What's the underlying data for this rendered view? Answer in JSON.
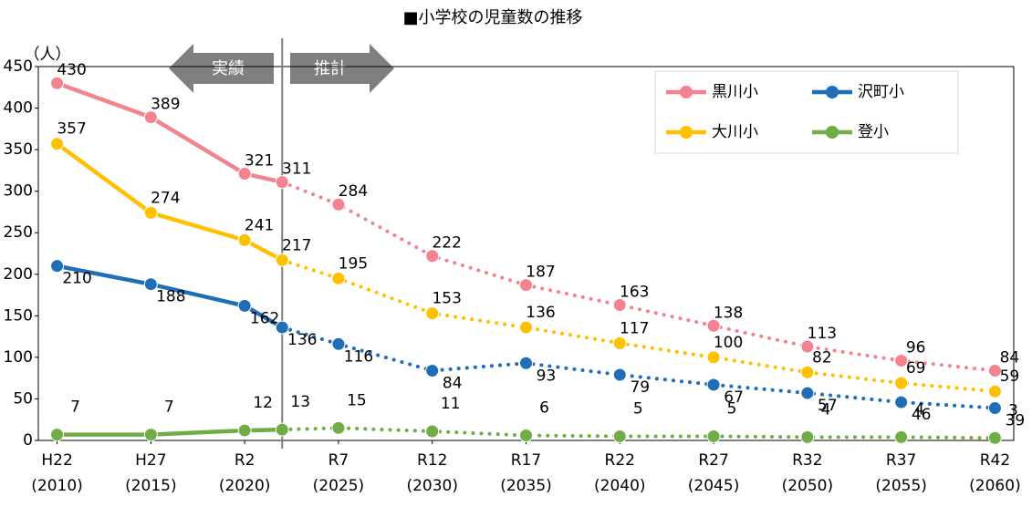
{
  "chart_data": {
    "type": "line",
    "title": "■小学校の児童数の推移",
    "y_axis_label": "（人）",
    "annotations": [
      "実績",
      "推計"
    ],
    "forecast_from": 2022,
    "x": [
      2010,
      2015,
      2020,
      2022,
      2025,
      2030,
      2035,
      2040,
      2045,
      2050,
      2055,
      2060
    ],
    "xlim": [
      2009,
      2061
    ],
    "xticks": [
      {
        "value": 2010,
        "label": "H22\n(2010)"
      },
      {
        "value": 2015,
        "label": "H27\n(2015)"
      },
      {
        "value": 2020,
        "label": "R2\n(2020)"
      },
      {
        "value": 2025,
        "label": "R7\n(2025)"
      },
      {
        "value": 2030,
        "label": "R12\n(2030)"
      },
      {
        "value": 2035,
        "label": "R17\n(2035)"
      },
      {
        "value": 2040,
        "label": "R22\n(2040)"
      },
      {
        "value": 2045,
        "label": "R27\n(2045)"
      },
      {
        "value": 2050,
        "label": "R32\n(2050)"
      },
      {
        "value": 2055,
        "label": "R37\n(2055)"
      },
      {
        "value": 2060,
        "label": "R42\n(2060)"
      }
    ],
    "ylim": [
      0,
      450
    ],
    "yticks": [
      0,
      50,
      100,
      150,
      200,
      250,
      300,
      350,
      400,
      450
    ],
    "series": [
      {
        "name": "黒川小",
        "color": "#f4828f",
        "values": [
          430,
          389,
          321,
          311,
          284,
          222,
          187,
          163,
          138,
          113,
          96,
          84
        ]
      },
      {
        "name": "沢町小",
        "color": "#1f6fb8",
        "values": [
          210,
          188,
          162,
          136,
          116,
          84,
          93,
          79,
          67,
          57,
          46,
          39
        ]
      },
      {
        "name": "大川小",
        "color": "#ffc000",
        "values": [
          357,
          274,
          241,
          217,
          195,
          153,
          136,
          117,
          100,
          82,
          69,
          59
        ]
      },
      {
        "name": "登小",
        "color": "#70ad47",
        "values": [
          7,
          7,
          12,
          13,
          15,
          11,
          6,
          5,
          5,
          4,
          4,
          3
        ]
      }
    ]
  }
}
